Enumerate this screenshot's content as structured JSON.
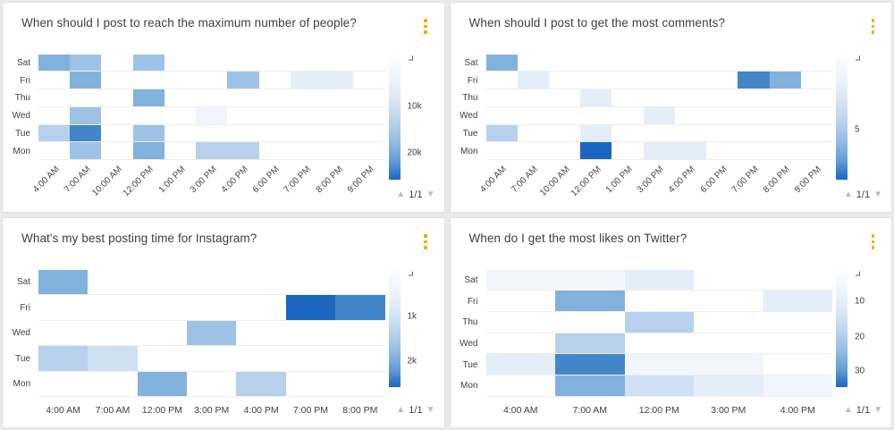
{
  "page": {
    "background": "#e9eaec",
    "card_background": "#ffffff"
  },
  "palette": {
    "0": "transparent",
    "1": "#f2f6fc",
    "2": "#e4eef9",
    "3": "#cfe0f3",
    "4": "#b7d1ec",
    "5": "#9dc2e6",
    "6": "#83b1dd",
    "7": "#4286c9",
    "8": "#1a66c0"
  },
  "icons": {
    "card_menu": "kebab-menu-icon",
    "menu_color": "#f5a700",
    "colorbar_top": "chevron-down-icon",
    "page_up": "▲",
    "page_down": "▼"
  },
  "chart_data": [
    {
      "type": "heatmap",
      "title": "When should I post to reach the maximum number of people?",
      "rows": [
        "Sat",
        "Fri",
        "Thu",
        "Wed",
        "Tue",
        "Mon"
      ],
      "cols": [
        "4:00 AM",
        "7:00 AM",
        "10:00 AM",
        "12:00 PM",
        "1:00 PM",
        "3:00 PM",
        "4:00 PM",
        "6:00 PM",
        "7:00 PM",
        "8:00 PM",
        "9:00 PM"
      ],
      "x_rotated": true,
      "values_levels": [
        [
          6,
          5,
          0,
          5,
          0,
          0,
          0,
          0,
          0,
          0,
          0
        ],
        [
          0,
          6,
          0,
          0,
          0,
          0,
          5,
          0,
          2,
          2,
          0
        ],
        [
          0,
          0,
          0,
          6,
          0,
          0,
          0,
          0,
          0,
          0,
          0
        ],
        [
          0,
          5,
          0,
          0,
          0,
          1,
          0,
          0,
          0,
          0,
          0
        ],
        [
          4,
          7,
          0,
          5,
          0,
          0,
          0,
          0,
          0,
          0,
          0
        ],
        [
          0,
          5,
          0,
          6,
          0,
          4,
          4,
          0,
          0,
          0,
          0
        ]
      ],
      "colorbar": {
        "labels": [
          {
            "text": "10k",
            "pos": 42
          },
          {
            "text": "20k",
            "pos": 79
          }
        ],
        "range_hint": "0 (light) to >20k (dark)"
      },
      "pagination": {
        "label": "1/1",
        "up": "▲",
        "down": "▼"
      }
    },
    {
      "type": "heatmap",
      "title": "When should I post to get the most comments?",
      "rows": [
        "Sat",
        "Fri",
        "Thu",
        "Wed",
        "Tue",
        "Mon"
      ],
      "cols": [
        "4:00 AM",
        "7:00 AM",
        "10:00 AM",
        "12:00 PM",
        "1:00 PM",
        "3:00 PM",
        "4:00 PM",
        "6:00 PM",
        "7:00 PM",
        "8:00 PM",
        "9:00 PM"
      ],
      "x_rotated": true,
      "values_levels": [
        [
          6,
          0,
          0,
          0,
          0,
          0,
          0,
          0,
          0,
          0,
          0
        ],
        [
          0,
          2,
          0,
          0,
          0,
          0,
          0,
          0,
          7,
          6,
          0
        ],
        [
          0,
          0,
          0,
          2,
          0,
          0,
          0,
          0,
          0,
          0,
          0
        ],
        [
          0,
          0,
          0,
          0,
          0,
          2,
          0,
          0,
          0,
          0,
          0
        ],
        [
          4,
          0,
          0,
          2,
          0,
          0,
          0,
          0,
          0,
          0,
          0
        ],
        [
          0,
          0,
          0,
          8,
          0,
          2,
          2,
          0,
          0,
          0,
          0
        ]
      ],
      "colorbar": {
        "labels": [
          {
            "text": "5",
            "pos": 60
          }
        ],
        "range_hint": "0 (light) to >5 (dark)"
      },
      "pagination": {
        "label": "1/1",
        "up": "▲",
        "down": "▼"
      }
    },
    {
      "type": "heatmap",
      "title": "What's my best posting time for Instagram?",
      "rows": [
        "Sat",
        "Fri",
        "Wed",
        "Tue",
        "Mon"
      ],
      "cols": [
        "4:00 AM",
        "7:00 AM",
        "12:00 PM",
        "3:00 PM",
        "4:00 PM",
        "7:00 PM",
        "8:00 PM"
      ],
      "x_rotated": false,
      "values_levels": [
        [
          6,
          0,
          0,
          0,
          0,
          0,
          0
        ],
        [
          0,
          0,
          0,
          0,
          0,
          8,
          7
        ],
        [
          0,
          0,
          0,
          5,
          0,
          0,
          0
        ],
        [
          4,
          3,
          0,
          0,
          0,
          0,
          0
        ],
        [
          0,
          0,
          6,
          0,
          4,
          0,
          0
        ]
      ],
      "colorbar": {
        "labels": [
          {
            "text": "1k",
            "pos": 40
          },
          {
            "text": "2k",
            "pos": 78
          }
        ],
        "range_hint": "0 (light) to >2k (dark)"
      },
      "pagination": {
        "label": "1/1",
        "up": "▲",
        "down": "▼"
      }
    },
    {
      "type": "heatmap",
      "title": "When do I get the most likes on Twitter?",
      "rows": [
        "Sat",
        "Fri",
        "Thu",
        "Wed",
        "Tue",
        "Mon"
      ],
      "cols": [
        "4:00 AM",
        "7:00 AM",
        "12:00 PM",
        "3:00 PM",
        "4:00 PM"
      ],
      "x_rotated": false,
      "values_levels": [
        [
          1,
          1,
          2,
          0,
          0
        ],
        [
          0,
          6,
          0,
          0,
          2
        ],
        [
          0,
          0,
          4,
          0,
          0
        ],
        [
          0,
          4,
          0,
          0,
          0
        ],
        [
          2,
          7,
          1,
          1,
          0
        ],
        [
          0,
          6,
          3,
          2,
          1
        ]
      ],
      "colorbar": {
        "labels": [
          {
            "text": "10",
            "pos": 27
          },
          {
            "text": "20",
            "pos": 58
          },
          {
            "text": "30",
            "pos": 87
          }
        ],
        "range_hint": "0 (light) to >30 (dark)"
      },
      "pagination": {
        "label": "1/1",
        "up": "▲",
        "down": "▼"
      }
    }
  ]
}
